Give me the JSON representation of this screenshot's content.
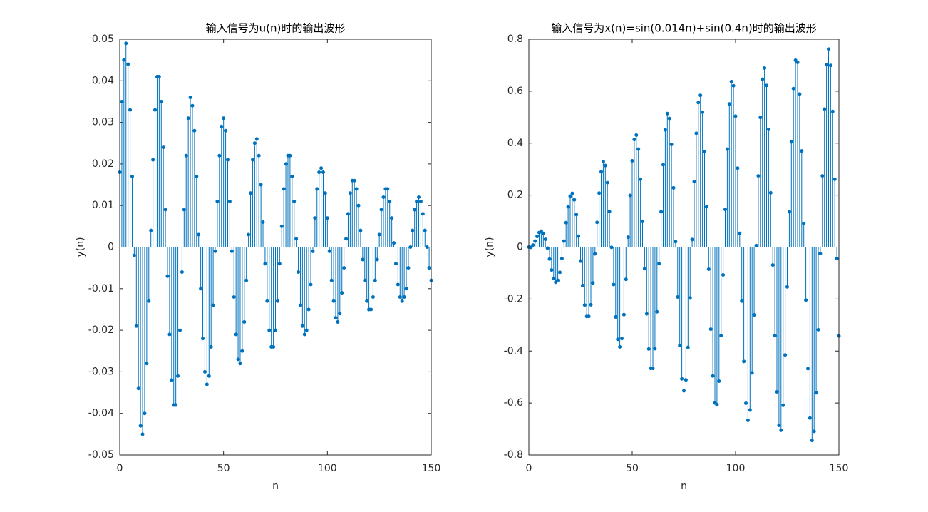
{
  "chart_data": [
    {
      "type": "stem",
      "title": "输入信号为u(n)时的输出波形",
      "x_label": "n",
      "y_label": "y(n)",
      "color": "#0072bd",
      "grid": false,
      "xlim": [
        0,
        150
      ],
      "xticks": [
        0,
        50,
        100,
        150
      ],
      "ylim": [
        -0.05,
        0.05
      ],
      "yticks": [
        -0.05,
        -0.04,
        -0.03,
        -0.02,
        -0.01,
        0,
        0.01,
        0.02,
        0.03,
        0.04,
        0.05
      ],
      "x": [
        0,
        1,
        2,
        3,
        4,
        5,
        6,
        7,
        8,
        9,
        10,
        11,
        12,
        13,
        14,
        15,
        16,
        17,
        18,
        19,
        20,
        21,
        22,
        23,
        24,
        25,
        26,
        27,
        28,
        29,
        30,
        31,
        32,
        33,
        34,
        35,
        36,
        37,
        38,
        39,
        40,
        41,
        42,
        43,
        44,
        45,
        46,
        47,
        48,
        49,
        50,
        51,
        52,
        53,
        54,
        55,
        56,
        57,
        58,
        59,
        60,
        61,
        62,
        63,
        64,
        65,
        66,
        67,
        68,
        69,
        70,
        71,
        72,
        73,
        74,
        75,
        76,
        77,
        78,
        79,
        80,
        81,
        82,
        83,
        84,
        85,
        86,
        87,
        88,
        89,
        90,
        91,
        92,
        93,
        94,
        95,
        96,
        97,
        98,
        99,
        100,
        101,
        102,
        103,
        104,
        105,
        106,
        107,
        108,
        109,
        110,
        111,
        112,
        113,
        114,
        115,
        116,
        117,
        118,
        119,
        120,
        121,
        122,
        123,
        124,
        125,
        126,
        127,
        128,
        129,
        130,
        131,
        132,
        133,
        134,
        135,
        136,
        137,
        138,
        139,
        140,
        141,
        142,
        143,
        144,
        145,
        146,
        147,
        148,
        149,
        150
      ],
      "values": [
        0.018,
        0.035,
        0.045,
        0.049,
        0.044,
        0.033,
        0.017,
        -0.002,
        -0.019,
        -0.034,
        -0.043,
        -0.045,
        -0.04,
        -0.028,
        -0.013,
        0.004,
        0.021,
        0.033,
        0.041,
        0.041,
        0.035,
        0.024,
        0.009,
        -0.007,
        -0.021,
        -0.032,
        -0.038,
        -0.038,
        -0.031,
        -0.02,
        -0.006,
        0.009,
        0.022,
        0.031,
        0.036,
        0.034,
        0.028,
        0.017,
        0.003,
        -0.01,
        -0.022,
        -0.03,
        -0.033,
        -0.031,
        -0.024,
        -0.014,
        -0.001,
        0.011,
        0.022,
        0.029,
        0.031,
        0.028,
        0.021,
        0.011,
        -0.001,
        -0.012,
        -0.021,
        -0.027,
        -0.028,
        -0.025,
        -0.018,
        -0.008,
        0.003,
        0.013,
        0.021,
        0.025,
        0.026,
        0.022,
        0.015,
        0.006,
        -0.004,
        -0.013,
        -0.02,
        -0.024,
        -0.024,
        -0.02,
        -0.013,
        -0.004,
        0.005,
        0.014,
        0.02,
        0.022,
        0.022,
        0.017,
        0.011,
        0.002,
        -0.006,
        -0.014,
        -0.019,
        -0.021,
        -0.02,
        -0.015,
        -0.009,
        -0.001,
        0.007,
        0.014,
        0.018,
        0.019,
        0.018,
        0.013,
        0.007,
        -0.001,
        -0.008,
        -0.013,
        -0.017,
        -0.018,
        -0.016,
        -0.011,
        -0.005,
        0.002,
        0.008,
        0.013,
        0.016,
        0.016,
        0.014,
        0.01,
        0.004,
        -0.003,
        -0.008,
        -0.013,
        -0.015,
        -0.015,
        -0.012,
        -0.008,
        -0.003,
        0.003,
        0.009,
        0.012,
        0.014,
        0.014,
        0.011,
        0.007,
        0.001,
        -0.004,
        -0.009,
        -0.012,
        -0.013,
        -0.012,
        -0.01,
        -0.005,
        0,
        0.004,
        0.009,
        0.011,
        0.012,
        0.011,
        0.008,
        0.004,
        0,
        -0.005,
        -0.008
      ]
    },
    {
      "type": "stem",
      "title": "输入信号为x(n)=sin(0.014n)+sin(0.4n)时的输出波形",
      "x_label": "n",
      "y_label": "y(n)",
      "color": "#0072bd",
      "grid": false,
      "xlim": [
        0,
        150
      ],
      "xticks": [
        0,
        50,
        100,
        150
      ],
      "ylim": [
        -0.8,
        0.8
      ],
      "yticks": [
        -0.8,
        -0.6,
        -0.4,
        -0.2,
        0,
        0.2,
        0.4,
        0.6,
        0.8
      ],
      "x": [
        0,
        1,
        2,
        3,
        4,
        5,
        6,
        7,
        8,
        9,
        10,
        11,
        12,
        13,
        14,
        15,
        16,
        17,
        18,
        19,
        20,
        21,
        22,
        23,
        24,
        25,
        26,
        27,
        28,
        29,
        30,
        31,
        32,
        33,
        34,
        35,
        36,
        37,
        38,
        39,
        40,
        41,
        42,
        43,
        44,
        45,
        46,
        47,
        48,
        49,
        50,
        51,
        52,
        53,
        54,
        55,
        56,
        57,
        58,
        59,
        60,
        61,
        62,
        63,
        64,
        65,
        66,
        67,
        68,
        69,
        70,
        71,
        72,
        73,
        74,
        75,
        76,
        77,
        78,
        79,
        80,
        81,
        82,
        83,
        84,
        85,
        86,
        87,
        88,
        89,
        90,
        91,
        92,
        93,
        94,
        95,
        96,
        97,
        98,
        99,
        100,
        101,
        102,
        103,
        104,
        105,
        106,
        107,
        108,
        109,
        110,
        111,
        112,
        113,
        114,
        115,
        116,
        117,
        118,
        119,
        120,
        121,
        122,
        123,
        124,
        125,
        126,
        127,
        128,
        129,
        130,
        131,
        132,
        133,
        134,
        135,
        136,
        137,
        138,
        139,
        140,
        141,
        142,
        143,
        144,
        145,
        146,
        147,
        148,
        149,
        150
      ],
      "values": [
        0,
        -0.001,
        0.008,
        0.023,
        0.041,
        0.056,
        0.061,
        0.053,
        0.03,
        -0.004,
        -0.046,
        -0.088,
        -0.121,
        -0.135,
        -0.128,
        -0.097,
        -0.044,
        0.023,
        0.094,
        0.155,
        0.196,
        0.207,
        0.182,
        0.125,
        0.042,
        -0.054,
        -0.148,
        -0.223,
        -0.267,
        -0.267,
        -0.222,
        -0.138,
        -0.026,
        0.095,
        0.208,
        0.29,
        0.329,
        0.314,
        0.248,
        0.137,
        -0.001,
        -0.144,
        -0.269,
        -0.355,
        -0.384,
        -0.352,
        -0.26,
        -0.124,
        0.038,
        0.199,
        0.332,
        0.414,
        0.431,
        0.377,
        0.261,
        0.099,
        -0.083,
        -0.257,
        -0.392,
        -0.467,
        -0.467,
        -0.391,
        -0.249,
        -0.064,
        0.136,
        0.317,
        0.451,
        0.514,
        0.495,
        0.395,
        0.228,
        0.021,
        -0.192,
        -0.379,
        -0.507,
        -0.553,
        -0.511,
        -0.386,
        -0.196,
        0.029,
        0.252,
        0.438,
        0.556,
        0.584,
        0.519,
        0.368,
        0.155,
        -0.085,
        -0.316,
        -0.496,
        -0.6,
        -0.607,
        -0.516,
        -0.341,
        -0.107,
        0.145,
        0.377,
        0.551,
        0.637,
        0.621,
        0.504,
        0.304,
        0.053,
        -0.208,
        -0.44,
        -0.601,
        -0.667,
        -0.627,
        -0.484,
        -0.261,
        0.006,
        0.274,
        0.499,
        0.646,
        0.689,
        0.622,
        0.453,
        0.209,
        -0.069,
        -0.341,
        -0.557,
        -0.686,
        -0.705,
        -0.609,
        -0.415,
        -0.153,
        0.136,
        0.405,
        0.61,
        0.719,
        0.711,
        0.589,
        0.37,
        0.091,
        -0.204,
        -0.468,
        -0.658,
        -0.744,
        -0.709,
        -0.561,
        -0.318,
        -0.025,
        0.274,
        0.531,
        0.702,
        0.762,
        0.699,
        0.522,
        0.261,
        -0.044,
        -0.342
      ]
    }
  ]
}
